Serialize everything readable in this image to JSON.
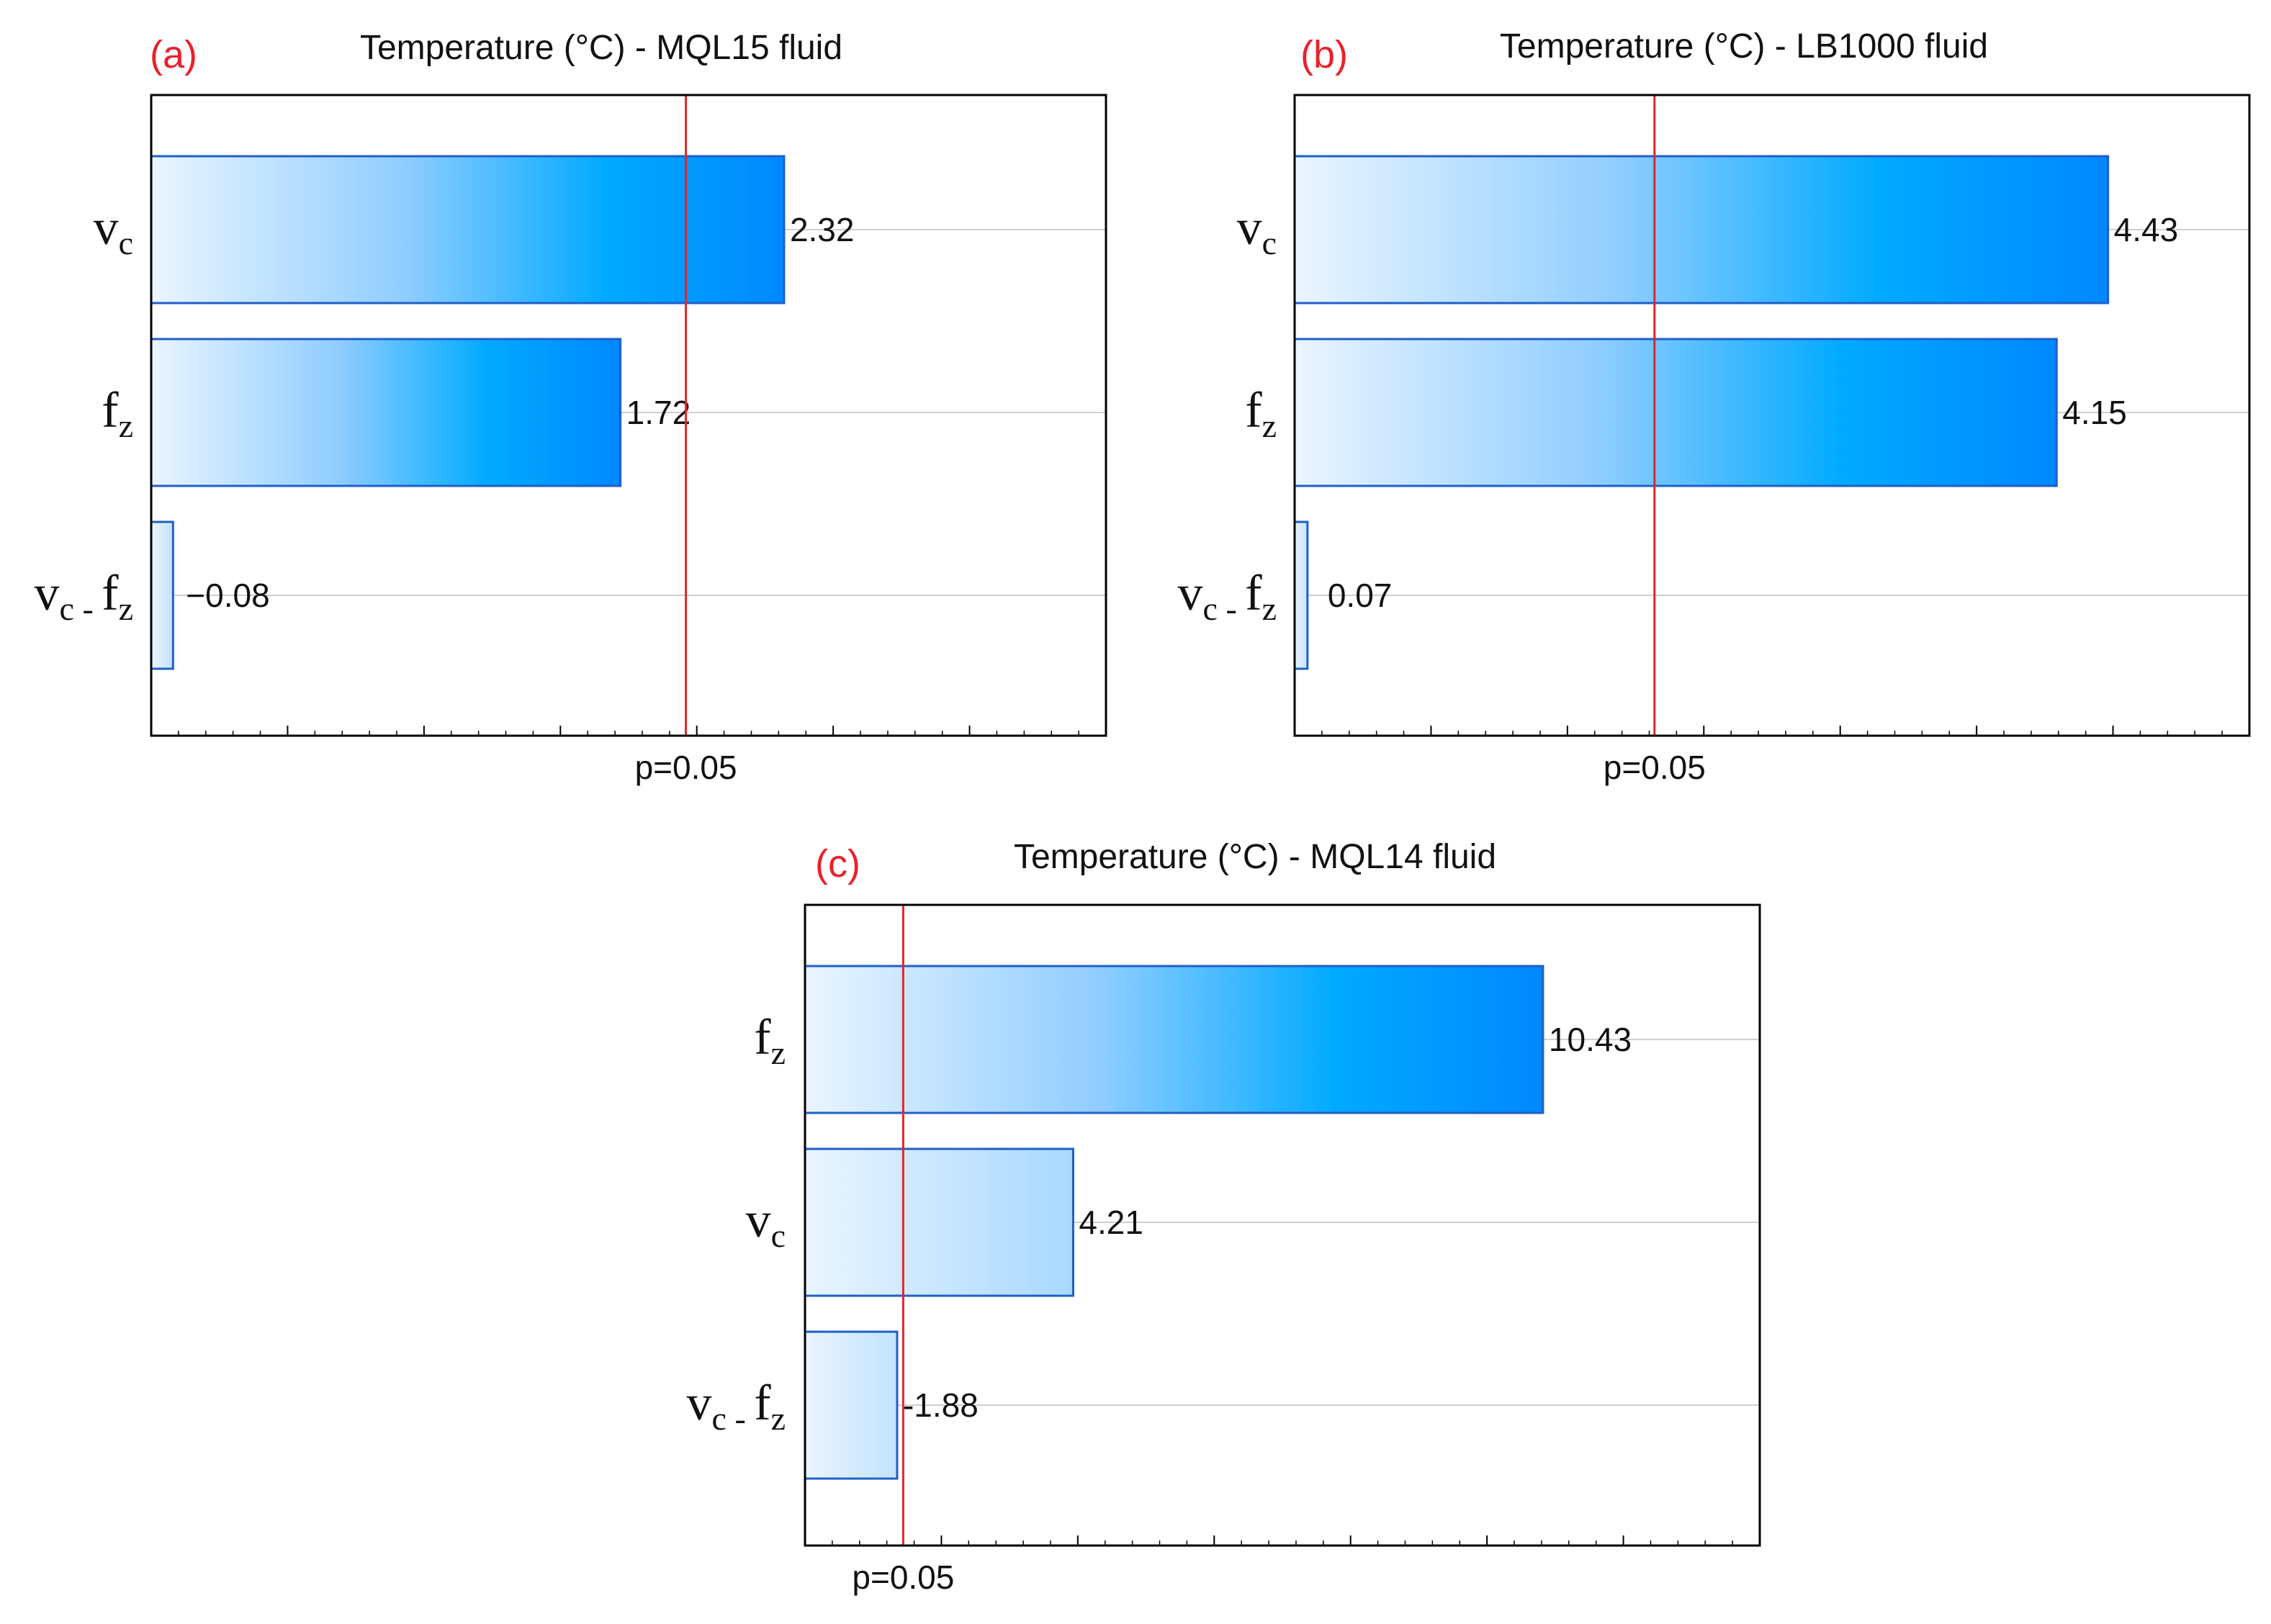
{
  "colors": {
    "panel_label": "#e8222b",
    "p_line": "#e0262c",
    "bar_stroke": "#1f5fc8",
    "bar_light": "#eaf5ff",
    "bar_mid": "#8fcdff",
    "bar_cyan": "#00aaff",
    "bar_dark": "#0088ff",
    "grid": "#cfcfcf",
    "frame": "#000000"
  },
  "chart_data": [
    {
      "id": "a",
      "type": "bar",
      "orientation": "horizontal",
      "panel_label": "(a)",
      "title": "Temperature (°C) - MQL15 fluid",
      "categories": [
        {
          "main": "v",
          "sub": "c"
        },
        {
          "main": "f",
          "sub": "z"
        },
        {
          "main": "v",
          "sub": "c",
          "sep": " - ",
          "main2": "f",
          "sub2": "z"
        }
      ],
      "values": [
        2.32,
        1.72,
        -0.08
      ],
      "value_labels": [
        "2.32",
        "1.72",
        "−0.08"
      ],
      "reference_line": {
        "value": 1.96,
        "label": "p=0.05"
      },
      "xlim": [
        0,
        3.5
      ]
    },
    {
      "id": "b",
      "type": "bar",
      "orientation": "horizontal",
      "panel_label": "(b)",
      "title": "Temperature (°C) - LB1000 fluid",
      "categories": [
        {
          "main": "v",
          "sub": "c"
        },
        {
          "main": "f",
          "sub": "z"
        },
        {
          "main": "v",
          "sub": "c",
          "sep": " - ",
          "main2": "f",
          "sub2": "z"
        }
      ],
      "values": [
        4.43,
        4.15,
        0.07
      ],
      "value_labels": [
        "4.43",
        "4.15",
        "0.07"
      ],
      "reference_line": {
        "value": 1.96,
        "label": "p=0.05"
      },
      "xlim": [
        0,
        5.2
      ]
    },
    {
      "id": "c",
      "type": "bar",
      "orientation": "horizontal",
      "panel_label": "(c)",
      "title": "Temperature (°C) - MQL14 fluid",
      "categories": [
        {
          "main": "f",
          "sub": "z"
        },
        {
          "main": "v",
          "sub": "c"
        },
        {
          "main": "v",
          "sub": "c",
          "sep": " - ",
          "main2": "f",
          "sub2": "z"
        }
      ],
      "values": [
        10.43,
        4.21,
        -1.88
      ],
      "value_labels": [
        "10.43",
        "4.21",
        "-1.88"
      ],
      "reference_line": {
        "value": 1.96,
        "label": "p=0.05"
      },
      "xlim": [
        0.66,
        13.3
      ]
    }
  ]
}
